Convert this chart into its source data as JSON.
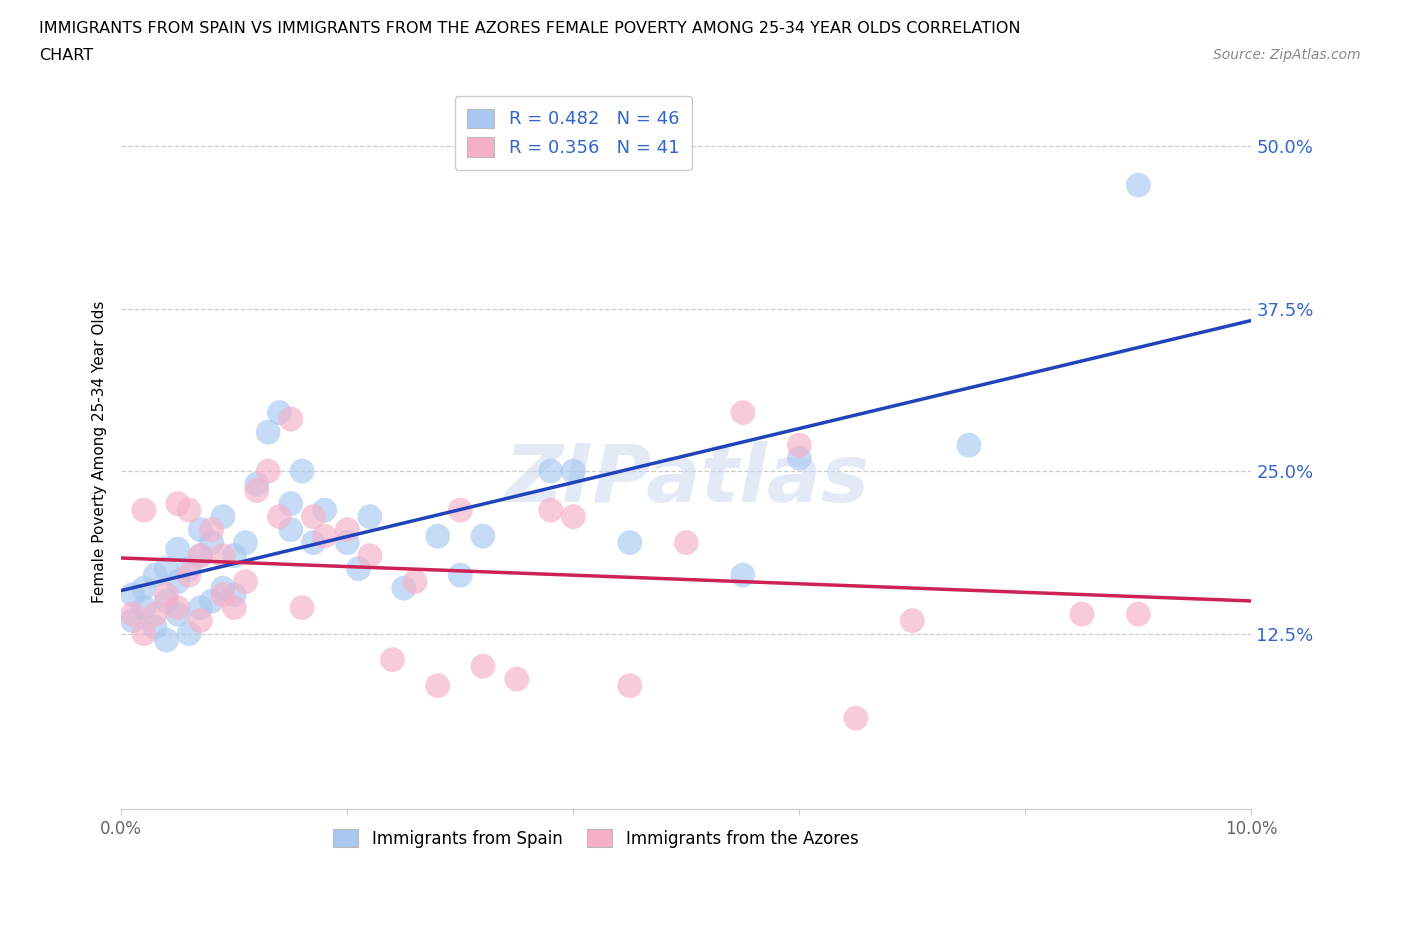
{
  "title_line1": "IMMIGRANTS FROM SPAIN VS IMMIGRANTS FROM THE AZORES FEMALE POVERTY AMONG 25-34 YEAR OLDS CORRELATION",
  "title_line2": "CHART",
  "source": "Source: ZipAtlas.com",
  "ylabel": "Female Poverty Among 25-34 Year Olds",
  "xlim": [
    0.0,
    0.1
  ],
  "ylim": [
    -0.01,
    0.54
  ],
  "yticks": [
    0.125,
    0.25,
    0.375,
    0.5
  ],
  "ytick_labels": [
    "12.5%",
    "25.0%",
    "37.5%",
    "50.0%"
  ],
  "xticks": [
    0.0,
    0.02,
    0.04,
    0.06,
    0.08,
    0.1
  ],
  "xtick_labels": [
    "0.0%",
    "",
    "",
    "",
    "",
    "10.0%"
  ],
  "legend_labels": [
    "Immigrants from Spain",
    "Immigrants from the Azores"
  ],
  "r_spain": 0.482,
  "n_spain": 46,
  "r_azores": 0.356,
  "n_azores": 41,
  "color_spain": "#a8c8f0",
  "color_azores": "#f5b0c8",
  "line_color_spain": "#2244bb",
  "line_color_azores": "#cc2255",
  "watermark": "ZIPatlas",
  "spain_x": [
    0.001,
    0.001,
    0.002,
    0.002,
    0.003,
    0.003,
    0.004,
    0.004,
    0.004,
    0.005,
    0.005,
    0.005,
    0.006,
    0.006,
    0.007,
    0.007,
    0.007,
    0.008,
    0.008,
    0.009,
    0.009,
    0.01,
    0.01,
    0.011,
    0.012,
    0.013,
    0.014,
    0.015,
    0.015,
    0.016,
    0.017,
    0.018,
    0.02,
    0.021,
    0.022,
    0.025,
    0.028,
    0.03,
    0.032,
    0.038,
    0.04,
    0.045,
    0.055,
    0.06,
    0.075,
    0.09
  ],
  "spain_y": [
    0.155,
    0.135,
    0.145,
    0.16,
    0.13,
    0.17,
    0.12,
    0.15,
    0.175,
    0.14,
    0.165,
    0.19,
    0.125,
    0.175,
    0.145,
    0.185,
    0.205,
    0.15,
    0.195,
    0.16,
    0.215,
    0.155,
    0.185,
    0.195,
    0.24,
    0.28,
    0.295,
    0.225,
    0.205,
    0.25,
    0.195,
    0.22,
    0.195,
    0.175,
    0.215,
    0.16,
    0.2,
    0.17,
    0.2,
    0.25,
    0.25,
    0.195,
    0.17,
    0.26,
    0.27,
    0.47
  ],
  "azores_x": [
    0.001,
    0.002,
    0.002,
    0.003,
    0.004,
    0.005,
    0.005,
    0.006,
    0.006,
    0.007,
    0.007,
    0.008,
    0.009,
    0.009,
    0.01,
    0.011,
    0.012,
    0.013,
    0.014,
    0.015,
    0.016,
    0.017,
    0.018,
    0.02,
    0.022,
    0.024,
    0.026,
    0.028,
    0.03,
    0.032,
    0.035,
    0.038,
    0.04,
    0.045,
    0.05,
    0.055,
    0.06,
    0.065,
    0.07,
    0.085,
    0.09
  ],
  "azores_y": [
    0.14,
    0.125,
    0.22,
    0.14,
    0.155,
    0.145,
    0.225,
    0.17,
    0.22,
    0.135,
    0.185,
    0.205,
    0.155,
    0.185,
    0.145,
    0.165,
    0.235,
    0.25,
    0.215,
    0.29,
    0.145,
    0.215,
    0.2,
    0.205,
    0.185,
    0.105,
    0.165,
    0.085,
    0.22,
    0.1,
    0.09,
    0.22,
    0.215,
    0.085,
    0.195,
    0.295,
    0.27,
    0.06,
    0.135,
    0.14,
    0.14
  ]
}
